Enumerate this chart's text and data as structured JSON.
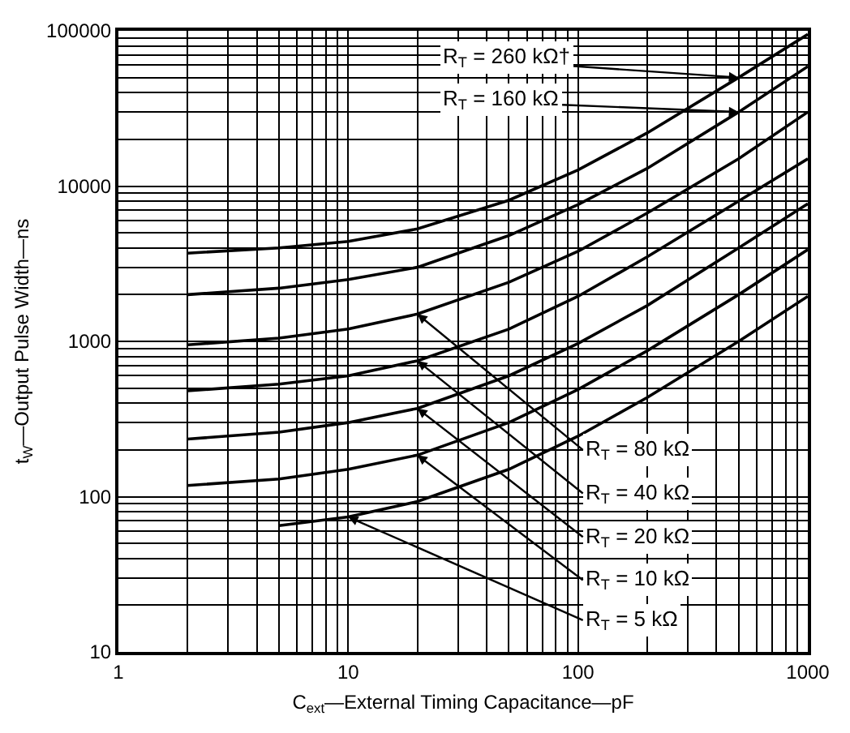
{
  "chart_data": {
    "type": "line",
    "xlabel": "C$_{ext}$—External Timing Capacitance—pF",
    "ylabel": "t$_{W}$—Output Pulse Width—ns",
    "log": "xy",
    "grid": true,
    "marker": "none",
    "line_style": "solid",
    "xlim": [
      1,
      1000
    ],
    "xticks": [
      1,
      10,
      100,
      1000
    ],
    "ylim": [
      10,
      100000
    ],
    "yticks": [
      10,
      100,
      1000,
      10000,
      100000
    ],
    "series": [
      {
        "color": "#000000",
        "x": [
          2,
          5,
          10,
          20,
          50,
          100,
          200,
          500,
          1000
        ],
        "values": [
          3700,
          4000,
          4400,
          5300,
          8100,
          12700,
          22000,
          50000,
          95000
        ]
      },
      {
        "color": "#000000",
        "x": [
          2,
          5,
          10,
          20,
          50,
          100,
          200,
          500,
          1000
        ],
        "values": [
          2000,
          2200,
          2500,
          3000,
          4800,
          7600,
          13000,
          30000,
          59000
        ]
      },
      {
        "color": "#000000",
        "x": [
          2,
          5,
          10,
          20,
          50,
          100,
          200,
          500,
          1000
        ],
        "values": [
          950,
          1050,
          1200,
          1500,
          2400,
          3800,
          6700,
          15000,
          30000
        ]
      },
      {
        "color": "#000000",
        "x": [
          2,
          5,
          10,
          20,
          50,
          100,
          200,
          500,
          1000
        ],
        "values": [
          480,
          530,
          600,
          750,
          1200,
          1950,
          3500,
          8000,
          15000
        ]
      },
      {
        "color": "#000000",
        "x": [
          2,
          5,
          10,
          20,
          50,
          100,
          200,
          500,
          1000
        ],
        "values": [
          235,
          260,
          300,
          370,
          600,
          970,
          1700,
          4000,
          7700
        ]
      },
      {
        "color": "#000000",
        "x": [
          2,
          5,
          10,
          20,
          50,
          100,
          200,
          500,
          1000
        ],
        "values": [
          118,
          130,
          150,
          185,
          300,
          490,
          870,
          2000,
          3900
        ]
      },
      {
        "color": "#000000",
        "x": [
          5,
          10,
          20,
          50,
          100,
          200,
          500,
          1000
        ],
        "values": [
          65,
          74,
          93,
          150,
          245,
          435,
          1000,
          1950
        ]
      }
    ],
    "annotations": [
      {
        "text": "R$_{T}$ = 260 kΩ†",
        "x": 500,
        "y": 50000
      },
      {
        "text": "R$_{T}$ = 160 kΩ",
        "x": 500,
        "y": 30000
      },
      {
        "text": "R$_{T}$ = 80 kΩ",
        "x": 20,
        "y": 1500
      },
      {
        "text": "R$_{T}$ = 40 kΩ",
        "x": 20,
        "y": 750
      },
      {
        "text": "R$_{T}$ = 20 kΩ",
        "x": 20,
        "y": 370
      },
      {
        "text": "R$_{T}$ = 10 kΩ",
        "x": 20,
        "y": 185
      },
      {
        "text": "R$_{T}$ = 5 kΩ",
        "x": 10,
        "y": 74
      }
    ]
  }
}
